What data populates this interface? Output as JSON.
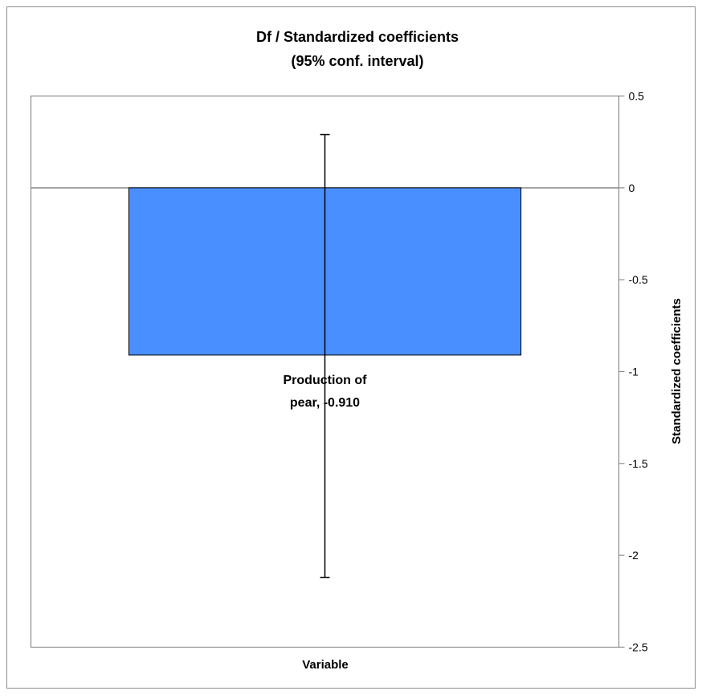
{
  "chart_data": {
    "type": "bar",
    "title": "Df / Standardized coefficients",
    "subtitle": "(95% conf. interval)",
    "xlabel": "Variable",
    "ylabel": "Standardized coefficients",
    "y_axis_position": "right",
    "ylim": [
      -2.5,
      0.5
    ],
    "yticks": [
      0.5,
      0,
      -0.5,
      -1,
      -1.5,
      -2,
      -2.5
    ],
    "ytick_labels": [
      "0.5",
      "0",
      "-0.5",
      "-1",
      "-1.5",
      "-2",
      "-2.5"
    ],
    "categories": [
      "Production of pear"
    ],
    "values": [
      -0.91
    ],
    "error_bars": [
      {
        "low": -2.12,
        "high": 0.29
      }
    ],
    "data_labels": [
      [
        "Production of",
        "pear, -0.910"
      ]
    ],
    "grid": false,
    "legend": "none"
  },
  "colors": {
    "bar": "#4a8fff",
    "bar_stroke": "#000000",
    "axis": "#8c8c8c",
    "frame": "#8c8c8c",
    "error_bar": "#000000"
  }
}
